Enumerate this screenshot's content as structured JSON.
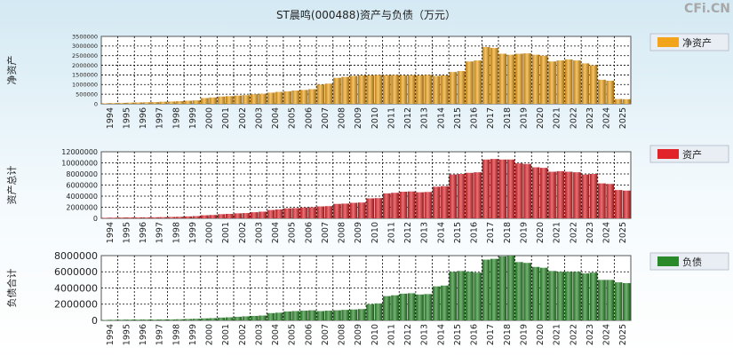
{
  "title": "ST晨鸣(000488)资产与负债（万元）",
  "watermark": "CFi.CN",
  "chart_data": [
    {
      "type": "bar",
      "ylabel": "净资产",
      "legend": "净资产",
      "legend_placement": "right",
      "color": "#f2a51a",
      "grid": true,
      "ylim": [
        0,
        3500000
      ],
      "yticks": [
        0,
        500000,
        1000000,
        1500000,
        2000000,
        2500000,
        3000000,
        3500000
      ],
      "categories": [
        "1994",
        "1995",
        "1996",
        "1997",
        "1998",
        "1999",
        "2000",
        "2001",
        "2002",
        "2003",
        "2004",
        "2005",
        "2006",
        "2007",
        "2008",
        "2009",
        "2010",
        "2011",
        "2012",
        "2013",
        "2014",
        "2015",
        "2016",
        "2017",
        "2018",
        "2019",
        "2020",
        "2021",
        "2022",
        "2023",
        "2024",
        "2025"
      ],
      "values": [
        [
          30000,
          40000
        ],
        [
          50000,
          60000
        ],
        [
          70000,
          80000
        ],
        [
          90000,
          110000
        ],
        [
          120000,
          140000
        ],
        [
          160000,
          180000
        ],
        [
          300000,
          330000
        ],
        [
          380000,
          400000
        ],
        [
          430000,
          450000
        ],
        [
          500000,
          520000
        ],
        [
          580000,
          620000
        ],
        [
          650000,
          690000
        ],
        [
          720000,
          760000
        ],
        [
          1000000,
          1050000
        ],
        [
          1350000,
          1400000
        ],
        [
          1450000,
          1480000
        ],
        [
          1480000,
          1500000
        ],
        [
          1490000,
          1500000
        ],
        [
          1480000,
          1490000
        ],
        [
          1480000,
          1500000
        ],
        [
          1450000,
          1480000
        ],
        [
          1650000,
          1700000
        ],
        [
          2200000,
          2250000
        ],
        [
          2950000,
          2900000
        ],
        [
          2600000,
          2550000
        ],
        [
          2600000,
          2620000
        ],
        [
          2550000,
          2500000
        ],
        [
          2200000,
          2250000
        ],
        [
          2300000,
          2250000
        ],
        [
          2100000,
          2000000
        ],
        [
          1250000,
          1200000
        ],
        [
          250000,
          240000
        ]
      ]
    },
    {
      "type": "bar",
      "ylabel": "资产总计",
      "legend": "资产",
      "legend_placement": "right",
      "color": "#e0242a",
      "grid": true,
      "ylim": [
        0,
        12000000
      ],
      "yticks": [
        0,
        2000000,
        4000000,
        6000000,
        8000000,
        10000000,
        12000000
      ],
      "categories": [
        "1994",
        "1995",
        "1996",
        "1997",
        "1998",
        "1999",
        "2000",
        "2001",
        "2002",
        "2003",
        "2004",
        "2005",
        "2006",
        "2007",
        "2008",
        "2009",
        "2010",
        "2011",
        "2012",
        "2013",
        "2014",
        "2015",
        "2016",
        "2017",
        "2018",
        "2019",
        "2020",
        "2021",
        "2022",
        "2023",
        "2024",
        "2025"
      ],
      "values": [
        [
          100000,
          120000
        ],
        [
          150000,
          160000
        ],
        [
          170000,
          180000
        ],
        [
          190000,
          210000
        ],
        [
          250000,
          280000
        ],
        [
          350000,
          400000
        ],
        [
          550000,
          600000
        ],
        [
          750000,
          800000
        ],
        [
          900000,
          950000
        ],
        [
          1100000,
          1200000
        ],
        [
          1500000,
          1600000
        ],
        [
          1800000,
          1850000
        ],
        [
          1950000,
          2000000
        ],
        [
          2150000,
          2200000
        ],
        [
          2600000,
          2650000
        ],
        [
          2800000,
          2850000
        ],
        [
          3600000,
          3650000
        ],
        [
          4500000,
          4600000
        ],
        [
          4800000,
          4850000
        ],
        [
          4700000,
          4750000
        ],
        [
          5700000,
          5800000
        ],
        [
          7900000,
          8000000
        ],
        [
          8200000,
          8300000
        ],
        [
          10600000,
          10700000
        ],
        [
          10600000,
          10600000
        ],
        [
          9900000,
          9800000
        ],
        [
          9200000,
          9100000
        ],
        [
          8400000,
          8500000
        ],
        [
          8400000,
          8300000
        ],
        [
          7900000,
          8000000
        ],
        [
          6300000,
          6200000
        ],
        [
          5100000,
          5000000
        ]
      ]
    },
    {
      "type": "bar",
      "ylabel": "负债合计",
      "legend": "负债",
      "legend_placement": "right",
      "color": "#2a8a2a",
      "grid": true,
      "ylim": [
        0,
        8000000
      ],
      "yticks": [
        0,
        2000000,
        4000000,
        6000000,
        8000000
      ],
      "categories": [
        "1994",
        "1995",
        "1996",
        "1997",
        "1998",
        "1999",
        "2000",
        "2001",
        "2002",
        "2003",
        "2004",
        "2005",
        "2006",
        "2007",
        "2008",
        "2009",
        "2010",
        "2011",
        "2012",
        "2013",
        "2014",
        "2015",
        "2016",
        "2017",
        "2018",
        "2019",
        "2020",
        "2021",
        "2022",
        "2023",
        "2024",
        "2025"
      ],
      "values": [
        [
          60000,
          80000
        ],
        [
          90000,
          100000
        ],
        [
          100000,
          110000
        ],
        [
          100000,
          120000
        ],
        [
          120000,
          140000
        ],
        [
          170000,
          200000
        ],
        [
          250000,
          280000
        ],
        [
          350000,
          380000
        ],
        [
          450000,
          500000
        ],
        [
          550000,
          600000
        ],
        [
          900000,
          950000
        ],
        [
          1100000,
          1150000
        ],
        [
          1200000,
          1250000
        ],
        [
          1150000,
          1200000
        ],
        [
          1250000,
          1300000
        ],
        [
          1350000,
          1400000
        ],
        [
          2000000,
          2100000
        ],
        [
          3000000,
          3100000
        ],
        [
          3300000,
          3350000
        ],
        [
          3200000,
          3250000
        ],
        [
          4200000,
          4300000
        ],
        [
          6000000,
          6100000
        ],
        [
          6000000,
          5900000
        ],
        [
          7500000,
          7600000
        ],
        [
          7900000,
          8000000
        ],
        [
          7200000,
          7100000
        ],
        [
          6600000,
          6500000
        ],
        [
          6100000,
          6000000
        ],
        [
          6000000,
          6000000
        ],
        [
          5800000,
          5900000
        ],
        [
          5000000,
          5000000
        ],
        [
          4700000,
          4600000
        ]
      ]
    }
  ]
}
